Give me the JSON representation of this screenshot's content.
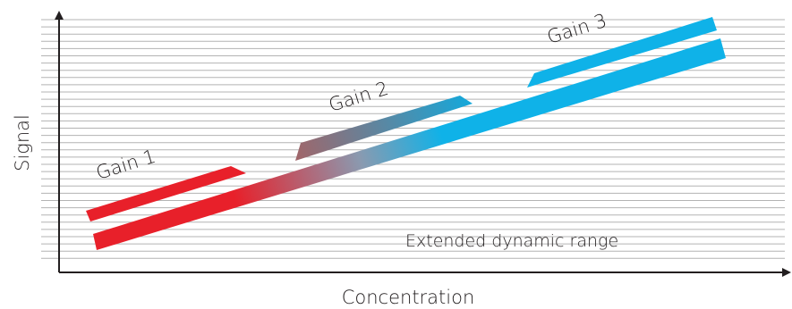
{
  "axes": {
    "x_label": "Concentration",
    "y_label": "Signal"
  },
  "bands": [
    {
      "name": "Gain 1",
      "color": "#e8202a"
    },
    {
      "name": "Gain 2",
      "color_start": "#9a6a6e",
      "color_end": "#1aa6d6"
    },
    {
      "name": "Gain 3",
      "color": "#0fb2e8"
    }
  ],
  "combined_band": {
    "label": "Extended dynamic range",
    "color_start": "#e8202a",
    "color_end": "#0fb2e8"
  },
  "colors": {
    "axis": "#231f20",
    "gridline": "#b3b3b3",
    "text": "#231f20"
  }
}
